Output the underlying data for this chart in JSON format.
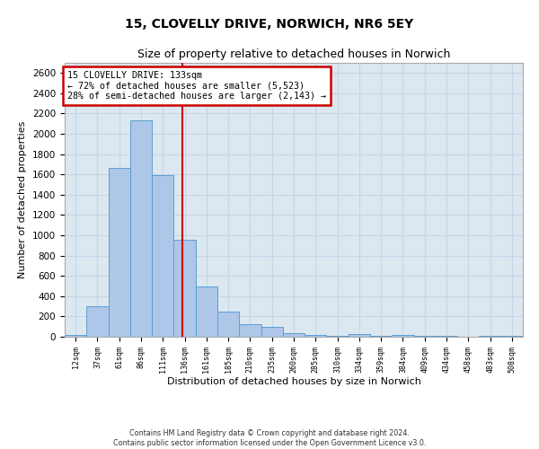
{
  "title_line1": "15, CLOVELLY DRIVE, NORWICH, NR6 5EY",
  "title_line2": "Size of property relative to detached houses in Norwich",
  "xlabel": "Distribution of detached houses by size in Norwich",
  "ylabel": "Number of detached properties",
  "categories": [
    "12sqm",
    "37sqm",
    "61sqm",
    "86sqm",
    "111sqm",
    "136sqm",
    "161sqm",
    "185sqm",
    "210sqm",
    "235sqm",
    "260sqm",
    "285sqm",
    "310sqm",
    "334sqm",
    "359sqm",
    "384sqm",
    "409sqm",
    "434sqm",
    "458sqm",
    "483sqm",
    "508sqm"
  ],
  "values": [
    20,
    300,
    1660,
    2130,
    1590,
    960,
    500,
    245,
    125,
    100,
    35,
    20,
    10,
    25,
    10,
    15,
    5,
    10,
    0,
    5,
    5
  ],
  "bar_color": "#aec6e8",
  "bar_edge_color": "#5a9fd4",
  "bar_width": 1.0,
  "vline_x_idx": 4.88,
  "annotation_text_line1": "15 CLOVELLY DRIVE: 133sqm",
  "annotation_text_line2": "← 72% of detached houses are smaller (5,523)",
  "annotation_text_line3": "28% of semi-detached houses are larger (2,143) →",
  "annotation_box_color": "#ffffff",
  "annotation_box_edge_color": "#cc0000",
  "vline_color": "#cc0000",
  "grid_color": "#c8d4e8",
  "background_color": "#dce8f0",
  "fig_background": "#ffffff",
  "ylim": [
    0,
    2700
  ],
  "yticks": [
    0,
    200,
    400,
    600,
    800,
    1000,
    1200,
    1400,
    1600,
    1800,
    2000,
    2200,
    2400,
    2600
  ],
  "footnote_line1": "Contains HM Land Registry data © Crown copyright and database right 2024.",
  "footnote_line2": "Contains public sector information licensed under the Open Government Licence v3.0."
}
